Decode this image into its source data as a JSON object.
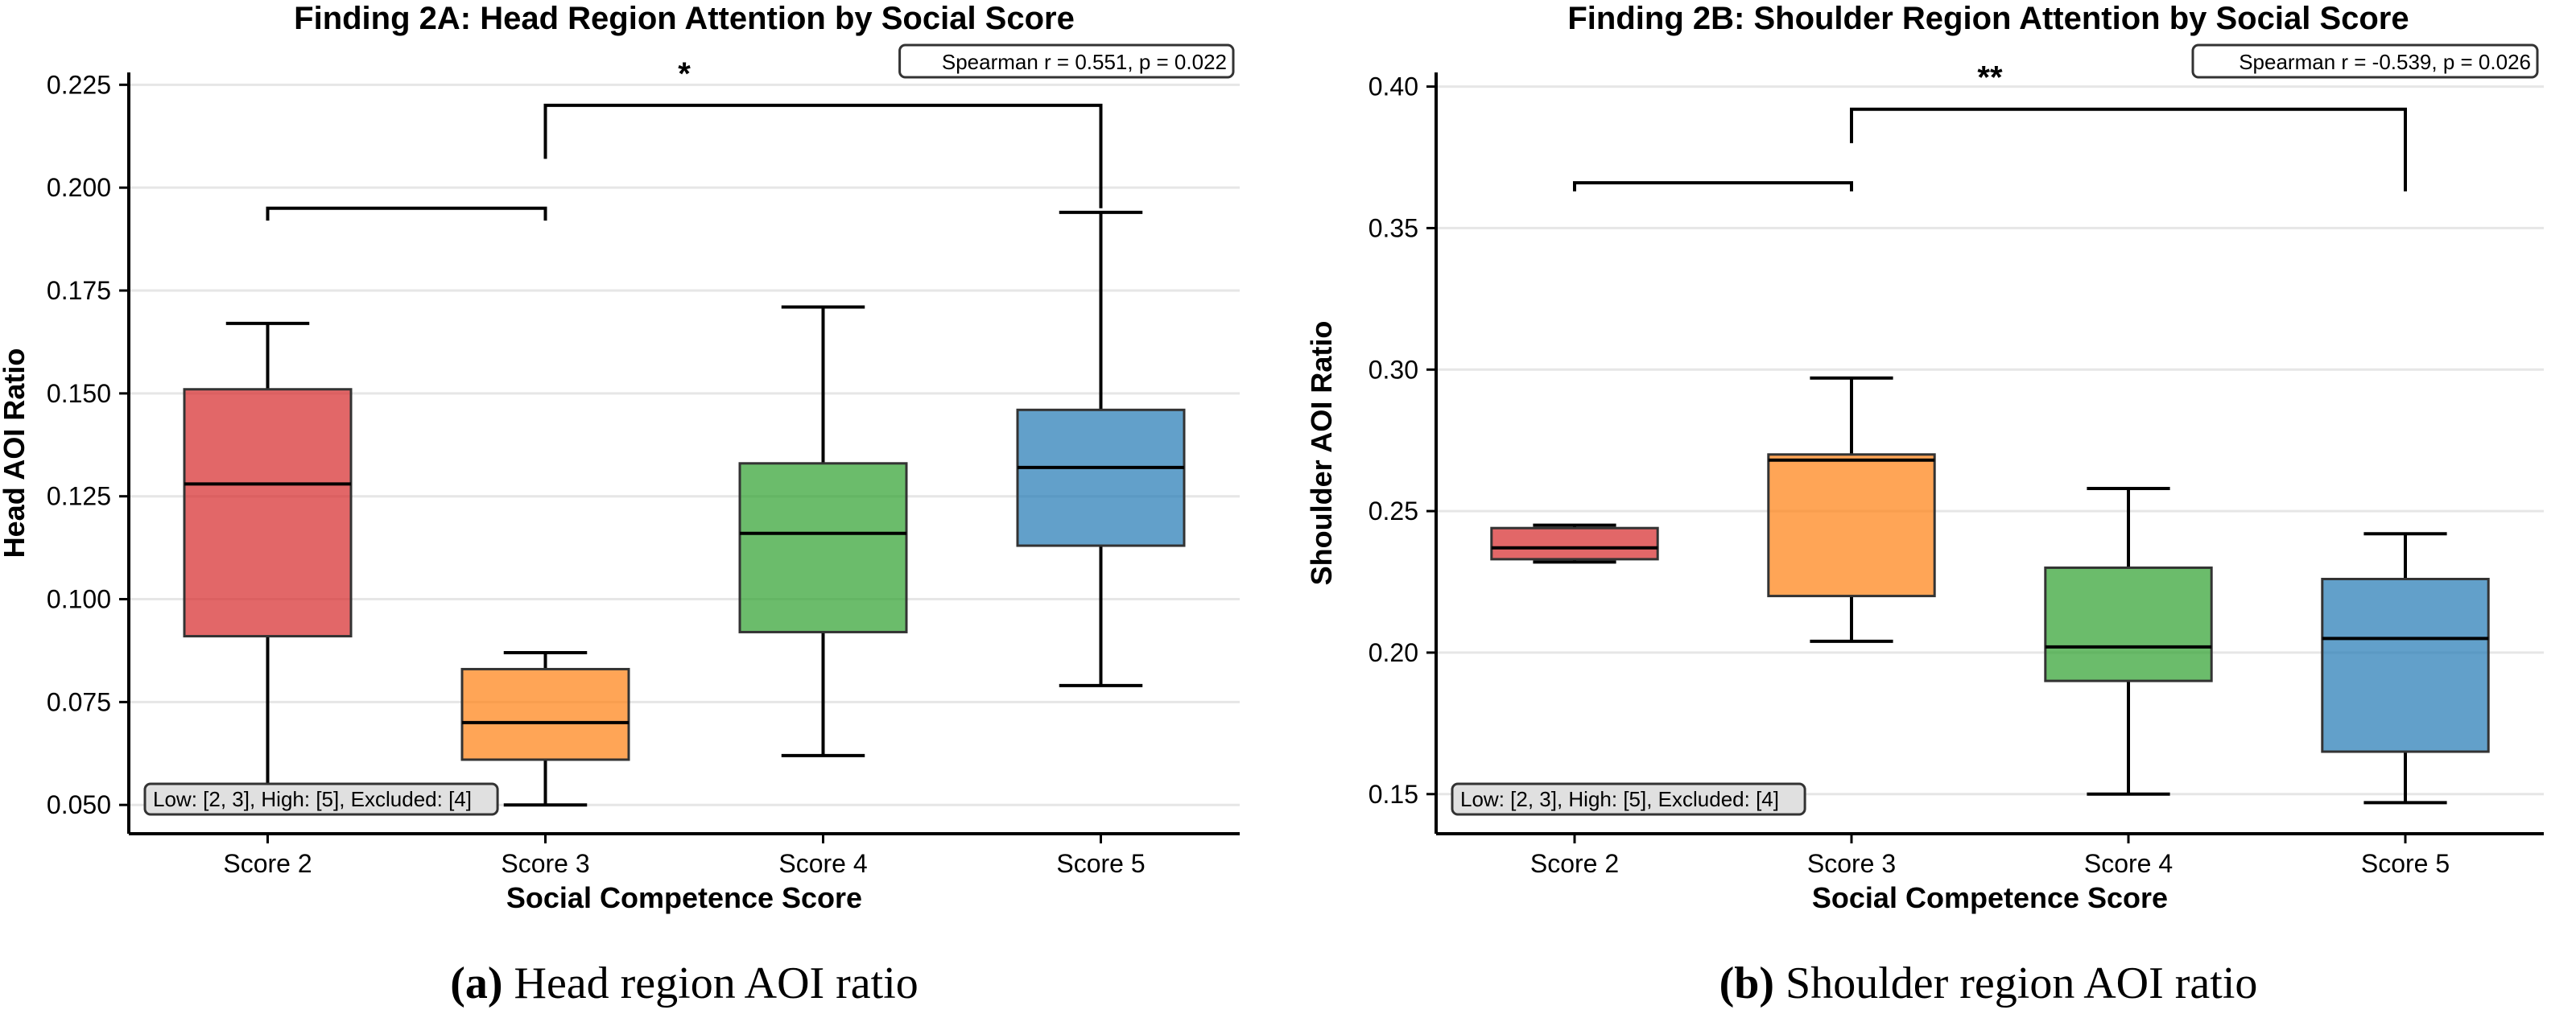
{
  "chart_data": [
    {
      "type": "box",
      "title": "Finding 2A: Head Region Attention by Social Score",
      "xlabel": "Social Competence Score",
      "ylabel": "Head AOI Ratio",
      "caption_label": "(a)",
      "caption_text": " Head region AOI ratio",
      "categories": [
        "Score 2",
        "Score 3",
        "Score 4",
        "Score 5"
      ],
      "colors": [
        "#d62728",
        "#ff7f0e",
        "#2ca02c",
        "#1f77b4"
      ],
      "boxes": [
        {
          "whisker_low": 0.052,
          "q1": 0.091,
          "median": 0.128,
          "q3": 0.151,
          "whisker_high": 0.167
        },
        {
          "whisker_low": 0.05,
          "q1": 0.061,
          "median": 0.07,
          "q3": 0.083,
          "whisker_high": 0.087
        },
        {
          "whisker_low": 0.062,
          "q1": 0.092,
          "median": 0.116,
          "q3": 0.133,
          "whisker_high": 0.171
        },
        {
          "whisker_low": 0.079,
          "q1": 0.113,
          "median": 0.132,
          "q3": 0.146,
          "whisker_high": 0.194
        }
      ],
      "yticks": [
        0.05,
        0.075,
        0.1,
        0.125,
        0.15,
        0.175,
        0.2,
        0.225
      ],
      "ytick_labels": [
        "0.050",
        "0.075",
        "0.100",
        "0.125",
        "0.150",
        "0.175",
        "0.200",
        "0.225"
      ],
      "ylim": [
        0.043,
        0.228
      ],
      "grid": "y",
      "brackets": [
        {
          "from": 0,
          "to": 1,
          "y": 0.195,
          "left_end": 0.192,
          "right_end": 0.192,
          "label": ""
        },
        {
          "from": 1,
          "to": 3,
          "y": 0.22,
          "left_end": 0.207,
          "right_end": 0.195,
          "label": "*"
        }
      ],
      "stats_box": "Spearman r = 0.551, p = 0.022",
      "stats_box_position": "top-right",
      "group_box": "Low: [2, 3], High: [5], Excluded: [4]",
      "group_box_position": "bottom-left"
    },
    {
      "type": "box",
      "title": "Finding 2B: Shoulder Region Attention by Social Score",
      "xlabel": "Social Competence Score",
      "ylabel": "Shoulder AOI Ratio",
      "caption_label": "(b)",
      "caption_text": " Shoulder region AOI ratio",
      "categories": [
        "Score 2",
        "Score 3",
        "Score 4",
        "Score 5"
      ],
      "colors": [
        "#d62728",
        "#ff7f0e",
        "#2ca02c",
        "#1f77b4"
      ],
      "boxes": [
        {
          "whisker_low": 0.232,
          "q1": 0.233,
          "median": 0.237,
          "q3": 0.244,
          "whisker_high": 0.245
        },
        {
          "whisker_low": 0.204,
          "q1": 0.22,
          "median": 0.268,
          "q3": 0.27,
          "whisker_high": 0.297
        },
        {
          "whisker_low": 0.15,
          "q1": 0.19,
          "median": 0.202,
          "q3": 0.23,
          "whisker_high": 0.258
        },
        {
          "whisker_low": 0.147,
          "q1": 0.165,
          "median": 0.205,
          "q3": 0.226,
          "whisker_high": 0.242
        }
      ],
      "yticks": [
        0.15,
        0.2,
        0.25,
        0.3,
        0.35,
        0.4
      ],
      "ytick_labels": [
        "0.15",
        "0.20",
        "0.25",
        "0.30",
        "0.35",
        "0.40"
      ],
      "ylim": [
        0.136,
        0.405
      ],
      "grid": "y",
      "brackets": [
        {
          "from": 0,
          "to": 1,
          "y": 0.366,
          "left_end": 0.363,
          "right_end": 0.363,
          "label": ""
        },
        {
          "from": 1,
          "to": 3,
          "y": 0.392,
          "left_end": 0.38,
          "right_end": 0.363,
          "label": "**"
        }
      ],
      "stats_box": "Spearman r = -0.539, p = 0.026",
      "stats_box_position": "top-right",
      "group_box": "Low: [2, 3], High: [5], Excluded: [4]",
      "group_box_position": "bottom-left"
    }
  ]
}
